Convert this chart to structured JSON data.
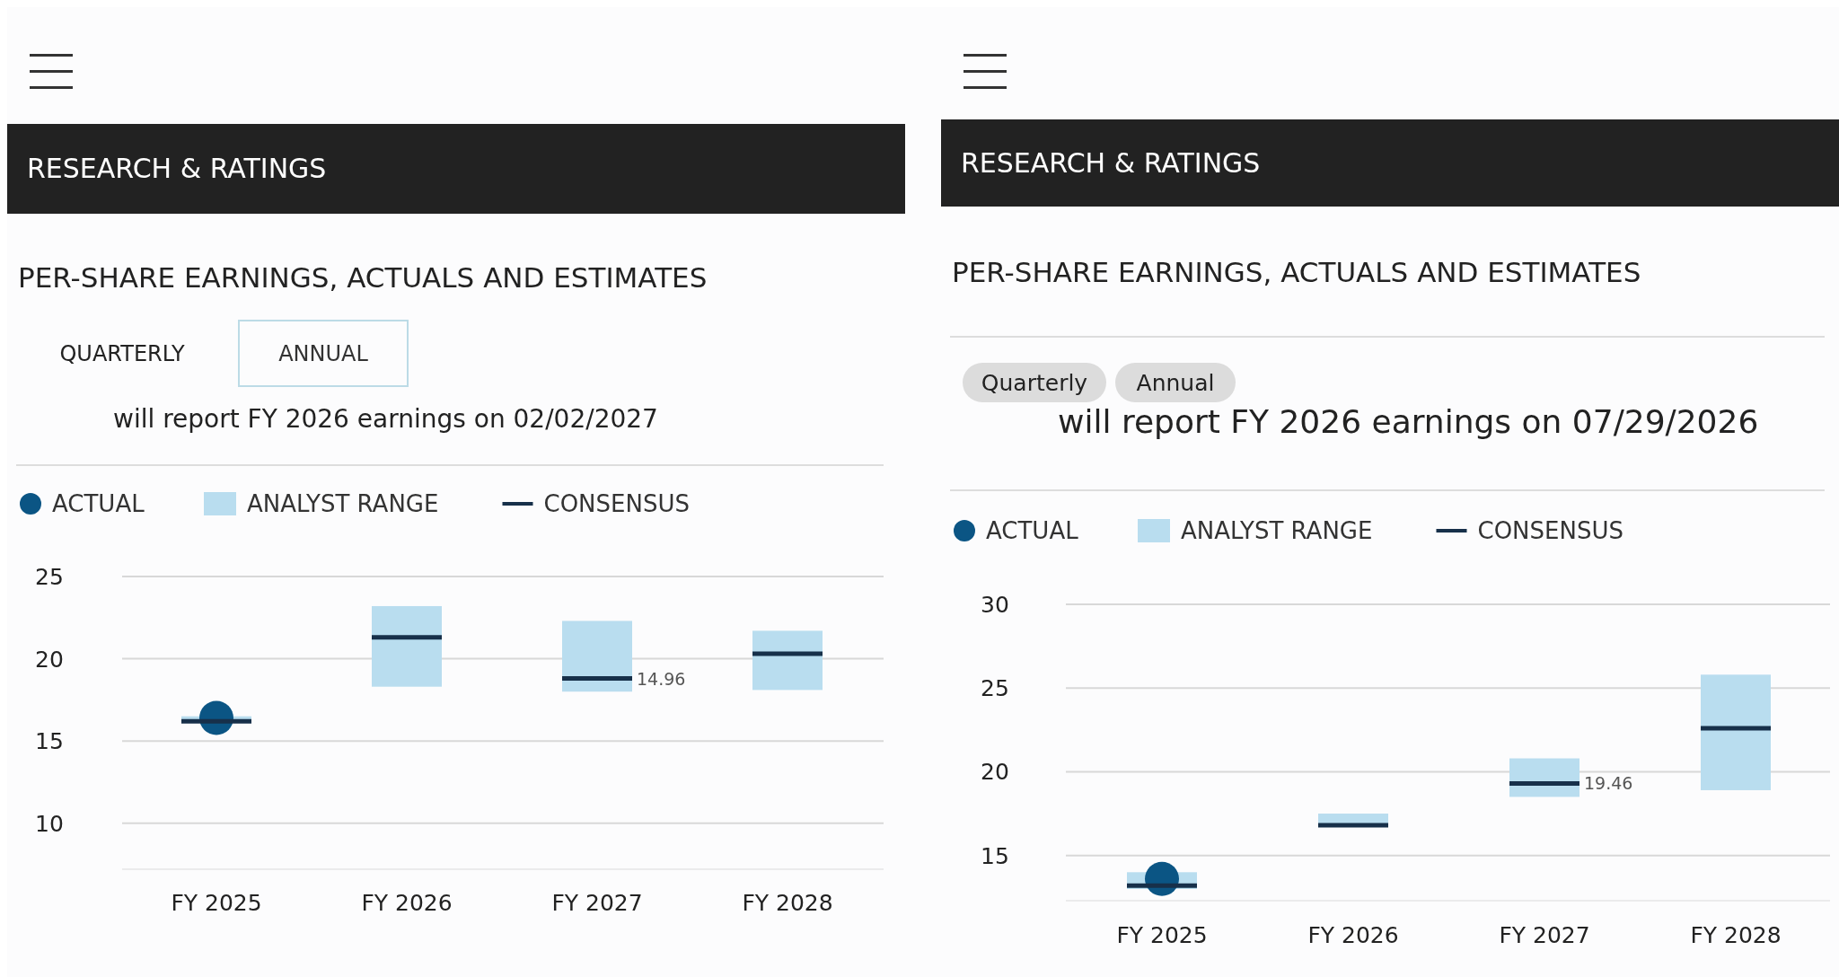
{
  "chart_data": [
    {
      "type": "bar",
      "title": "PER-SHARE EARNINGS, ACTUALS AND ESTIMATES",
      "subtitle": "will report FY 2026 earnings on 02/02/2027",
      "annotations": [
        "RESEARCH & RATINGS",
        "QUARTERLY",
        "ANNUAL",
        {
          "text": "14.96",
          "x": "FY 2027",
          "y": 18.8
        }
      ],
      "categories": [
        "FY 2025",
        "FY 2026",
        "FY 2027",
        "FY 2028"
      ],
      "series": [
        {
          "name": "ACTUAL",
          "type": "scatter",
          "marker": "circle",
          "color": "#0b5584",
          "values": [
            16.4,
            null,
            null,
            null
          ]
        },
        {
          "name": "ANALYST RANGE",
          "type": "bar",
          "color": "#b9ddef",
          "base": [
            16.1,
            18.3,
            18.0,
            18.1
          ],
          "values": [
            0.4,
            4.9,
            4.3,
            3.6
          ]
        },
        {
          "name": "CONSENSUS",
          "type": "box",
          "color": "#17304a",
          "boxes": [
            {
              "low": 16.2,
              "q1": 16.2,
              "median": 16.2,
              "q3": 16.2,
              "high": 16.2
            },
            {
              "low": 21.3,
              "q1": 21.3,
              "median": 21.3,
              "q3": 21.3,
              "high": 21.3
            },
            {
              "low": 18.8,
              "q1": 18.8,
              "median": 18.8,
              "q3": 18.8,
              "high": 18.8
            },
            {
              "low": 20.3,
              "q1": 20.3,
              "median": 20.3,
              "q3": 20.3,
              "high": 20.3
            }
          ]
        }
      ],
      "ylim": [
        7.2,
        25
      ],
      "yticks": [
        10,
        15,
        20,
        25
      ],
      "grid": "y",
      "legend": "top left"
    },
    {
      "type": "bar",
      "title": "PER-SHARE EARNINGS, ACTUALS AND ESTIMATES",
      "subtitle": "will report FY 2026 earnings on 07/29/2026",
      "annotations": [
        "RESEARCH & RATINGS",
        "Quarterly",
        "Annual",
        {
          "text": "19.46",
          "x": "FY 2027",
          "y": 19.3
        }
      ],
      "categories": [
        "FY 2025",
        "FY 2026",
        "FY 2027",
        "FY 2028"
      ],
      "series": [
        {
          "name": "ACTUAL",
          "type": "scatter",
          "marker": "circle",
          "color": "#0b5584",
          "values": [
            13.6,
            null,
            null,
            null
          ]
        },
        {
          "name": "ANALYST RANGE",
          "type": "bar",
          "color": "#b9ddef",
          "base": [
            13.0,
            16.7,
            18.5,
            18.9
          ],
          "values": [
            1.0,
            0.8,
            2.3,
            6.9
          ]
        },
        {
          "name": "CONSENSUS",
          "type": "box",
          "color": "#17304a",
          "boxes": [
            {
              "low": 13.2,
              "q1": 13.2,
              "median": 13.2,
              "q3": 13.2,
              "high": 13.2
            },
            {
              "low": 16.8,
              "q1": 16.8,
              "median": 16.8,
              "q3": 16.8,
              "high": 16.8
            },
            {
              "low": 19.3,
              "q1": 19.3,
              "median": 19.3,
              "q3": 19.3,
              "high": 19.3
            },
            {
              "low": 22.6,
              "q1": 22.6,
              "median": 22.6,
              "q3": 22.6,
              "high": 22.6
            }
          ]
        }
      ],
      "ylim": [
        12.3,
        30
      ],
      "yticks": [
        15,
        20,
        25,
        30
      ],
      "grid": "y",
      "legend": "top left"
    }
  ]
}
